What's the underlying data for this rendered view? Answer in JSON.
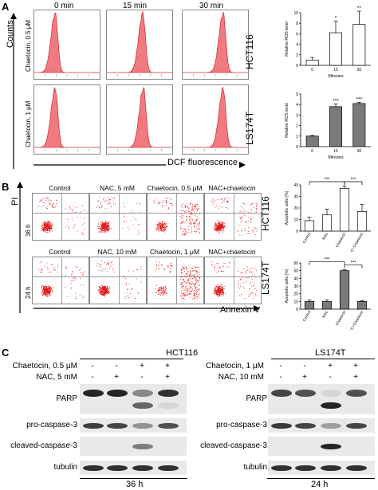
{
  "panelA": {
    "letter": "A",
    "timepoints": [
      "0 min",
      "15 min",
      "30 min"
    ],
    "y_axis": "Counts",
    "x_axis": "DCF fluorescence",
    "rows": [
      {
        "dose": "Chaetocin, 0.5 μM",
        "cell": "HCT116",
        "peaks": [
          0.32,
          0.55,
          0.62
        ]
      },
      {
        "dose": "Chaetocin, 1 μM",
        "cell": "LS174T",
        "peaks": [
          0.32,
          0.56,
          0.62
        ]
      }
    ]
  },
  "panelB": {
    "letter": "B",
    "y_axis": "PI",
    "x_axis": "Annexin V",
    "rows": [
      {
        "time": "36 h",
        "cell": "HCT116",
        "conditions": [
          "Control",
          "NAC, 5 mM",
          "Chaetocin, 0.5 μM",
          "NAC+chaetocin"
        ]
      },
      {
        "time": "24 h",
        "cell": "LS174T",
        "conditions": [
          "Control",
          "NAC, 10 mM",
          "Chaetocin, 1 μM",
          "NAC+chaetocin"
        ]
      }
    ]
  },
  "panelC": {
    "letter": "C",
    "blots": [
      {
        "cell": "HCT116",
        "time": "36 h",
        "treatments": [
          {
            "label": "Chaetocin, 0.5 μM",
            "signs": [
              "-",
              "-",
              "+",
              "+"
            ]
          },
          {
            "label": "NAC, 5 mM",
            "signs": [
              "-",
              "+",
              "-",
              "+"
            ]
          }
        ],
        "rows": [
          {
            "label": "PARP",
            "intensity": [
              0.9,
              0.9,
              0.45,
              0.85
            ],
            "cleaved": [
              0,
              0,
              0.6,
              0.1
            ]
          },
          {
            "label": "pro-caspase-3",
            "intensity": [
              0.8,
              0.75,
              0.4,
              0.7
            ]
          },
          {
            "label": "cleaved-caspase-3",
            "intensity": [
              0,
              0,
              0.5,
              0
            ]
          },
          {
            "label": "tubulin",
            "intensity": [
              0.85,
              0.85,
              0.85,
              0.85
            ]
          }
        ]
      },
      {
        "cell": "LS174T",
        "time": "24 h",
        "treatments": [
          {
            "label": "Chaetocin, 1 μM",
            "signs": [
              "-",
              "-",
              "+",
              "+"
            ]
          },
          {
            "label": "NAC, 10 mM",
            "signs": [
              "-",
              "+",
              "-",
              "+"
            ]
          }
        ],
        "rows": [
          {
            "label": "PARP",
            "intensity": [
              0.75,
              0.7,
              0.1,
              0.7
            ],
            "cleaved": [
              0,
              0,
              0.9,
              0
            ]
          },
          {
            "label": "pro-caspase-3",
            "intensity": [
              0.8,
              0.75,
              0.35,
              0.75
            ]
          },
          {
            "label": "cleaved-caspase-3",
            "intensity": [
              0,
              0,
              0.9,
              0
            ]
          },
          {
            "label": "tubulin",
            "intensity": [
              0.85,
              0.85,
              0.85,
              0.85
            ]
          }
        ]
      }
    ]
  },
  "chart_data": [
    {
      "type": "bar",
      "categories": [
        "0",
        "15",
        "30"
      ],
      "values": [
        1,
        6.2,
        7.8
      ],
      "errors": [
        0.5,
        2.2,
        2.5
      ],
      "stars": [
        "",
        "*",
        "**"
      ],
      "ylabel": "Relative ROS level",
      "xlabel": "Minutes",
      "ylim": [
        0,
        10
      ],
      "yticks": [
        0,
        2,
        4,
        6,
        8,
        10
      ],
      "color": "#ffffff"
    },
    {
      "type": "bar",
      "categories": [
        "0",
        "15",
        "30"
      ],
      "values": [
        1,
        3.8,
        4.1
      ],
      "errors": [
        0.05,
        0.25,
        0.12
      ],
      "stars": [
        "",
        "***",
        "***"
      ],
      "ylabel": "Relative ROS level",
      "xlabel": "Minutes",
      "ylim": [
        0,
        5
      ],
      "yticks": [
        0,
        1,
        2,
        3,
        4,
        5
      ],
      "color": "#7a7a7a"
    },
    {
      "type": "bar",
      "categories": [
        "Control",
        "NAC",
        "Chaetocin",
        "NAC+Chaetocin"
      ],
      "values": [
        9,
        14,
        37,
        17
      ],
      "errors": [
        3,
        5,
        2,
        6
      ],
      "ylabel": "Apoptotic cells (%)",
      "ylim": [
        0,
        40
      ],
      "yticks": [
        0,
        10,
        20,
        30,
        40
      ],
      "brackets": [
        {
          "from": 0,
          "to": 2,
          "label": "***"
        },
        {
          "from": 2,
          "to": 3,
          "label": "***"
        }
      ],
      "color": "#ffffff"
    },
    {
      "type": "bar",
      "categories": [
        "Control",
        "NAC",
        "Chaetocin",
        "NAC+Chaetocin"
      ],
      "values": [
        10,
        10,
        50,
        10
      ],
      "errors": [
        2,
        2,
        1,
        1
      ],
      "ylabel": "Apoptotic cells (%)",
      "ylim": [
        0,
        60
      ],
      "yticks": [
        0,
        10,
        20,
        30,
        40,
        50,
        60
      ],
      "brackets": [
        {
          "from": 0,
          "to": 2,
          "label": "***"
        },
        {
          "from": 2,
          "to": 3,
          "label": "***"
        }
      ],
      "color": "#7a7a7a"
    }
  ]
}
